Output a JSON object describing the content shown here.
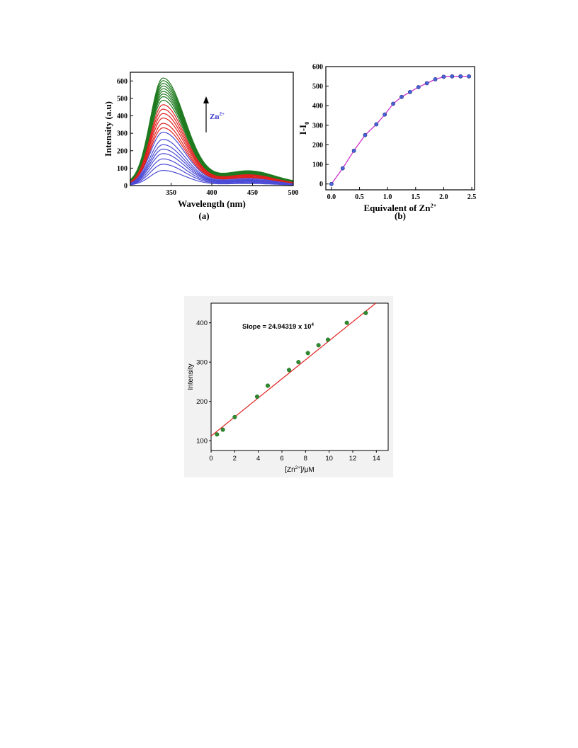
{
  "chart_data": [
    {
      "id": "a",
      "type": "line",
      "panel_label": "(a)",
      "xlabel": "Wavelength (nm)",
      "ylabel": "Intensity (a.u)",
      "xlim": [
        300,
        500
      ],
      "ylim": [
        0,
        650
      ],
      "xticks": [
        350,
        400,
        450,
        500
      ],
      "yticks": [
        0,
        100,
        200,
        300,
        400,
        500,
        600
      ],
      "annotation": {
        "text": "Zn",
        "superscript": "2+",
        "arrow": "up"
      },
      "peak_wavelength": 340,
      "series_groups": [
        {
          "color": "#4b4bd6",
          "peak_intensities": [
            85,
            120,
            150,
            180,
            205,
            230,
            260,
            300
          ]
        },
        {
          "color": "#e0201e",
          "peak_intensities": [
            325,
            350,
            380,
            405,
            430,
            455
          ]
        },
        {
          "color": "#1f7a1f",
          "peak_intensities": [
            480,
            500,
            515,
            530,
            545,
            560,
            575,
            590,
            605
          ]
        }
      ]
    },
    {
      "id": "b",
      "type": "line",
      "panel_label": "(b)",
      "xlabel": "Equivalent of Zn",
      "xlabel_superscript": "2+",
      "ylabel": "I-I",
      "ylabel_subscript": "0",
      "xlim": [
        -0.1,
        2.55
      ],
      "ylim": [
        -30,
        600
      ],
      "xticks": [
        0.0,
        0.5,
        1.0,
        1.5,
        2.0,
        2.5
      ],
      "xtick_labels": [
        "0.0",
        "0.5",
        "1.0",
        "1.5",
        "2.0",
        "2.5"
      ],
      "yticks": [
        0,
        100,
        200,
        300,
        400,
        500,
        600
      ],
      "line_color": "#cc33cc",
      "marker_color": "#4a63d8",
      "x": [
        0.0,
        0.2,
        0.4,
        0.6,
        0.8,
        0.95,
        1.1,
        1.25,
        1.4,
        1.55,
        1.7,
        1.85,
        2.0,
        2.15,
        2.3,
        2.45
      ],
      "y": [
        0,
        80,
        170,
        250,
        305,
        355,
        410,
        445,
        470,
        495,
        515,
        535,
        548,
        550,
        550,
        550
      ]
    },
    {
      "id": "c",
      "type": "scatter",
      "xlabel": "[Zn",
      "xlabel_superscript": "2+",
      "xlabel_suffix": "]/μM",
      "ylabel": "Intensity",
      "xlim": [
        0,
        15
      ],
      "ylim": [
        75,
        450
      ],
      "xticks": [
        0,
        2,
        4,
        6,
        8,
        10,
        12,
        14
      ],
      "yticks": [
        100,
        200,
        300,
        400
      ],
      "annotation": {
        "text": "Slope = 24.94319 x 10",
        "superscript": "4"
      },
      "marker_color": "#2e8b2e",
      "fit_color": "#e02020",
      "fit": {
        "x0": 0,
        "y0": 112,
        "x1": 14.2,
        "y1": 456
      },
      "x": [
        0.5,
        1.0,
        2.0,
        3.9,
        4.8,
        6.6,
        7.4,
        8.2,
        9.1,
        9.9,
        11.5,
        13.1
      ],
      "y": [
        116,
        128,
        160,
        212,
        240,
        280,
        300,
        323,
        343,
        357,
        400,
        425
      ]
    }
  ]
}
